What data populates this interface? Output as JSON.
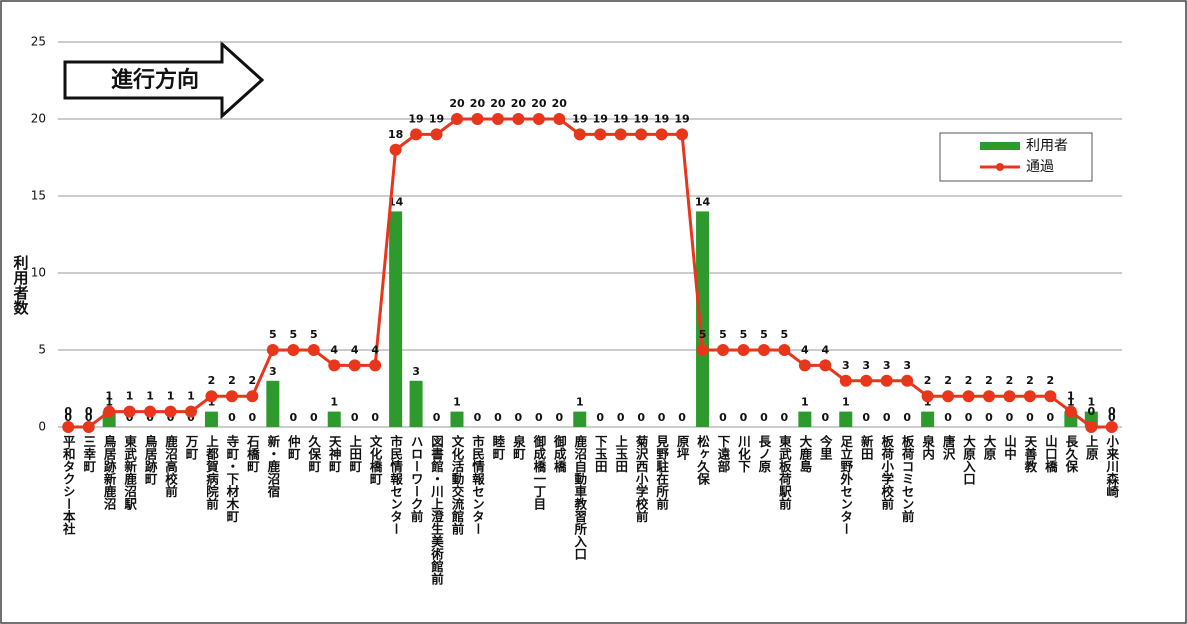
{
  "chart_data": {
    "type": "bar_line",
    "y_label": "利用者数",
    "annotation": "進行方向",
    "categories": [
      "平和タクシー本社",
      "三幸町",
      "鳥居跡新鹿沼",
      "東武新鹿沼駅",
      "鳥居跡町",
      "鹿沼高校前",
      "万町",
      "上都賀病院前",
      "寺町・下材木町",
      "石橋町",
      "新・鹿沼宿",
      "仲町",
      "久保町",
      "天神町",
      "上田町",
      "文化橋町",
      "市民情報センター",
      "ハローワーク前",
      "図書館・川上澄生美術館前",
      "文化活動交流館前",
      "市民情報センター",
      "睦町",
      "泉町",
      "御成橋一丁目",
      "御成橋",
      "鹿沼自動車教習所入口",
      "下玉田",
      "上玉田",
      "菊沢西小学校前",
      "見野駐在所前",
      "原坪",
      "松ヶ久保",
      "下遠部",
      "川化下",
      "長ノ原",
      "東武板荷駅前",
      "大鹿島",
      "今里",
      "足立野外センター",
      "新田",
      "板荷小学校前",
      "板荷コミセン前",
      "泉内",
      "唐沢",
      "大原入口",
      "大原",
      "山中",
      "天善教",
      "山口橋",
      "長久保",
      "上原",
      "小来川森崎"
    ],
    "series": [
      {
        "name": "利用者",
        "kind": "bar",
        "color": "#2e9a2e",
        "values": [
          0,
          0,
          1,
          0,
          0,
          0,
          0,
          1,
          0,
          0,
          3,
          0,
          0,
          1,
          0,
          0,
          14,
          3,
          0,
          1,
          0,
          0,
          0,
          0,
          0,
          1,
          0,
          0,
          0,
          0,
          0,
          14,
          0,
          0,
          0,
          0,
          1,
          0,
          1,
          0,
          0,
          0,
          1,
          0,
          0,
          0,
          0,
          0,
          0,
          1,
          1,
          0
        ]
      },
      {
        "name": "通過",
        "kind": "line",
        "color": "#e8361c",
        "values": [
          0,
          0,
          1,
          1,
          1,
          1,
          1,
          2,
          2,
          2,
          5,
          5,
          5,
          4,
          4,
          4,
          18,
          19,
          19,
          20,
          20,
          20,
          20,
          20,
          20,
          19,
          19,
          19,
          19,
          19,
          19,
          5,
          5,
          5,
          5,
          5,
          4,
          4,
          3,
          3,
          3,
          3,
          2,
          2,
          2,
          2,
          2,
          2,
          2,
          1,
          0,
          0
        ]
      }
    ],
    "ylim": [
      0,
      25
    ],
    "yticks": [
      0,
      5,
      10,
      15,
      20,
      25
    ],
    "grid": true,
    "legend": "upper right"
  }
}
